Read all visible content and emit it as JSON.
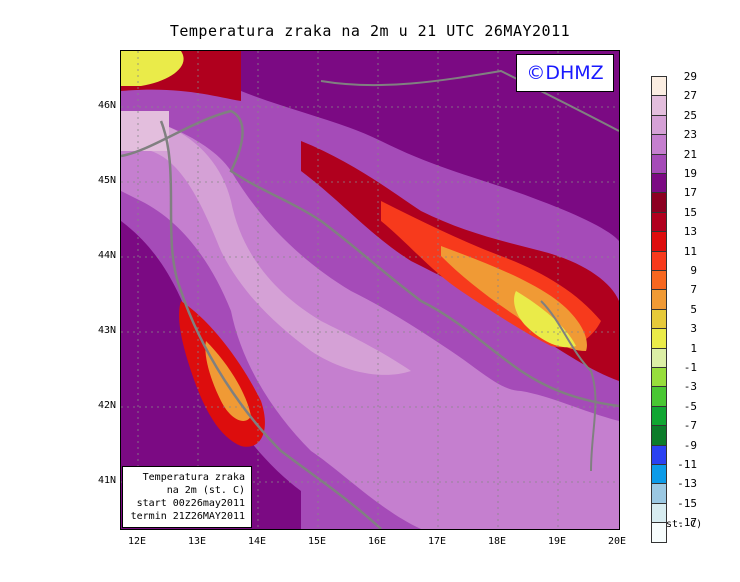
{
  "title": "Temperatura zraka na 2m u 21 UTC 26MAY2011",
  "logo": "©DHMZ",
  "info_box": {
    "line1": "Temperatura zraka",
    "line2": "na 2m (st. C)",
    "line3": "start 00z26may2011",
    "line4": "termin 21Z26MAY2011"
  },
  "axes": {
    "lat_labels": [
      "46N",
      "45N",
      "44N",
      "43N",
      "42N",
      "41N"
    ],
    "lon_labels": [
      "12E",
      "13E",
      "14E",
      "15E",
      "16E",
      "17E",
      "18E",
      "19E",
      "20E"
    ],
    "lat_range": [
      40.3,
      46.7
    ],
    "lon_range": [
      11.7,
      20.0
    ],
    "grid": "dotted"
  },
  "legend": {
    "labels": [
      "29",
      "27",
      "25",
      "23",
      "21",
      "19",
      "17",
      "15",
      "13",
      "11",
      "9",
      "7",
      "5",
      "3",
      "1",
      "-1",
      "-3",
      "-5",
      "-7",
      "-9",
      "-11",
      "-13",
      "-15",
      "-17"
    ],
    "colors": [
      "#fbeee2",
      "#e3bedd",
      "#d5a1d6",
      "#c57fcf",
      "#a54bb8",
      "#7b0a83",
      "#8c0021",
      "#b0001e",
      "#dd0d0d",
      "#f73a1c",
      "#f7671f",
      "#f09a35",
      "#e6c93a",
      "#eaeb49",
      "#dcefa6",
      "#97de3c",
      "#49c733",
      "#10a632",
      "#0c7c2a",
      "#2b41f2",
      "#0c9be8",
      "#9bc8e2",
      "#d7ecf0",
      "#f7fdfd"
    ],
    "units": "(st. C)"
  }
}
